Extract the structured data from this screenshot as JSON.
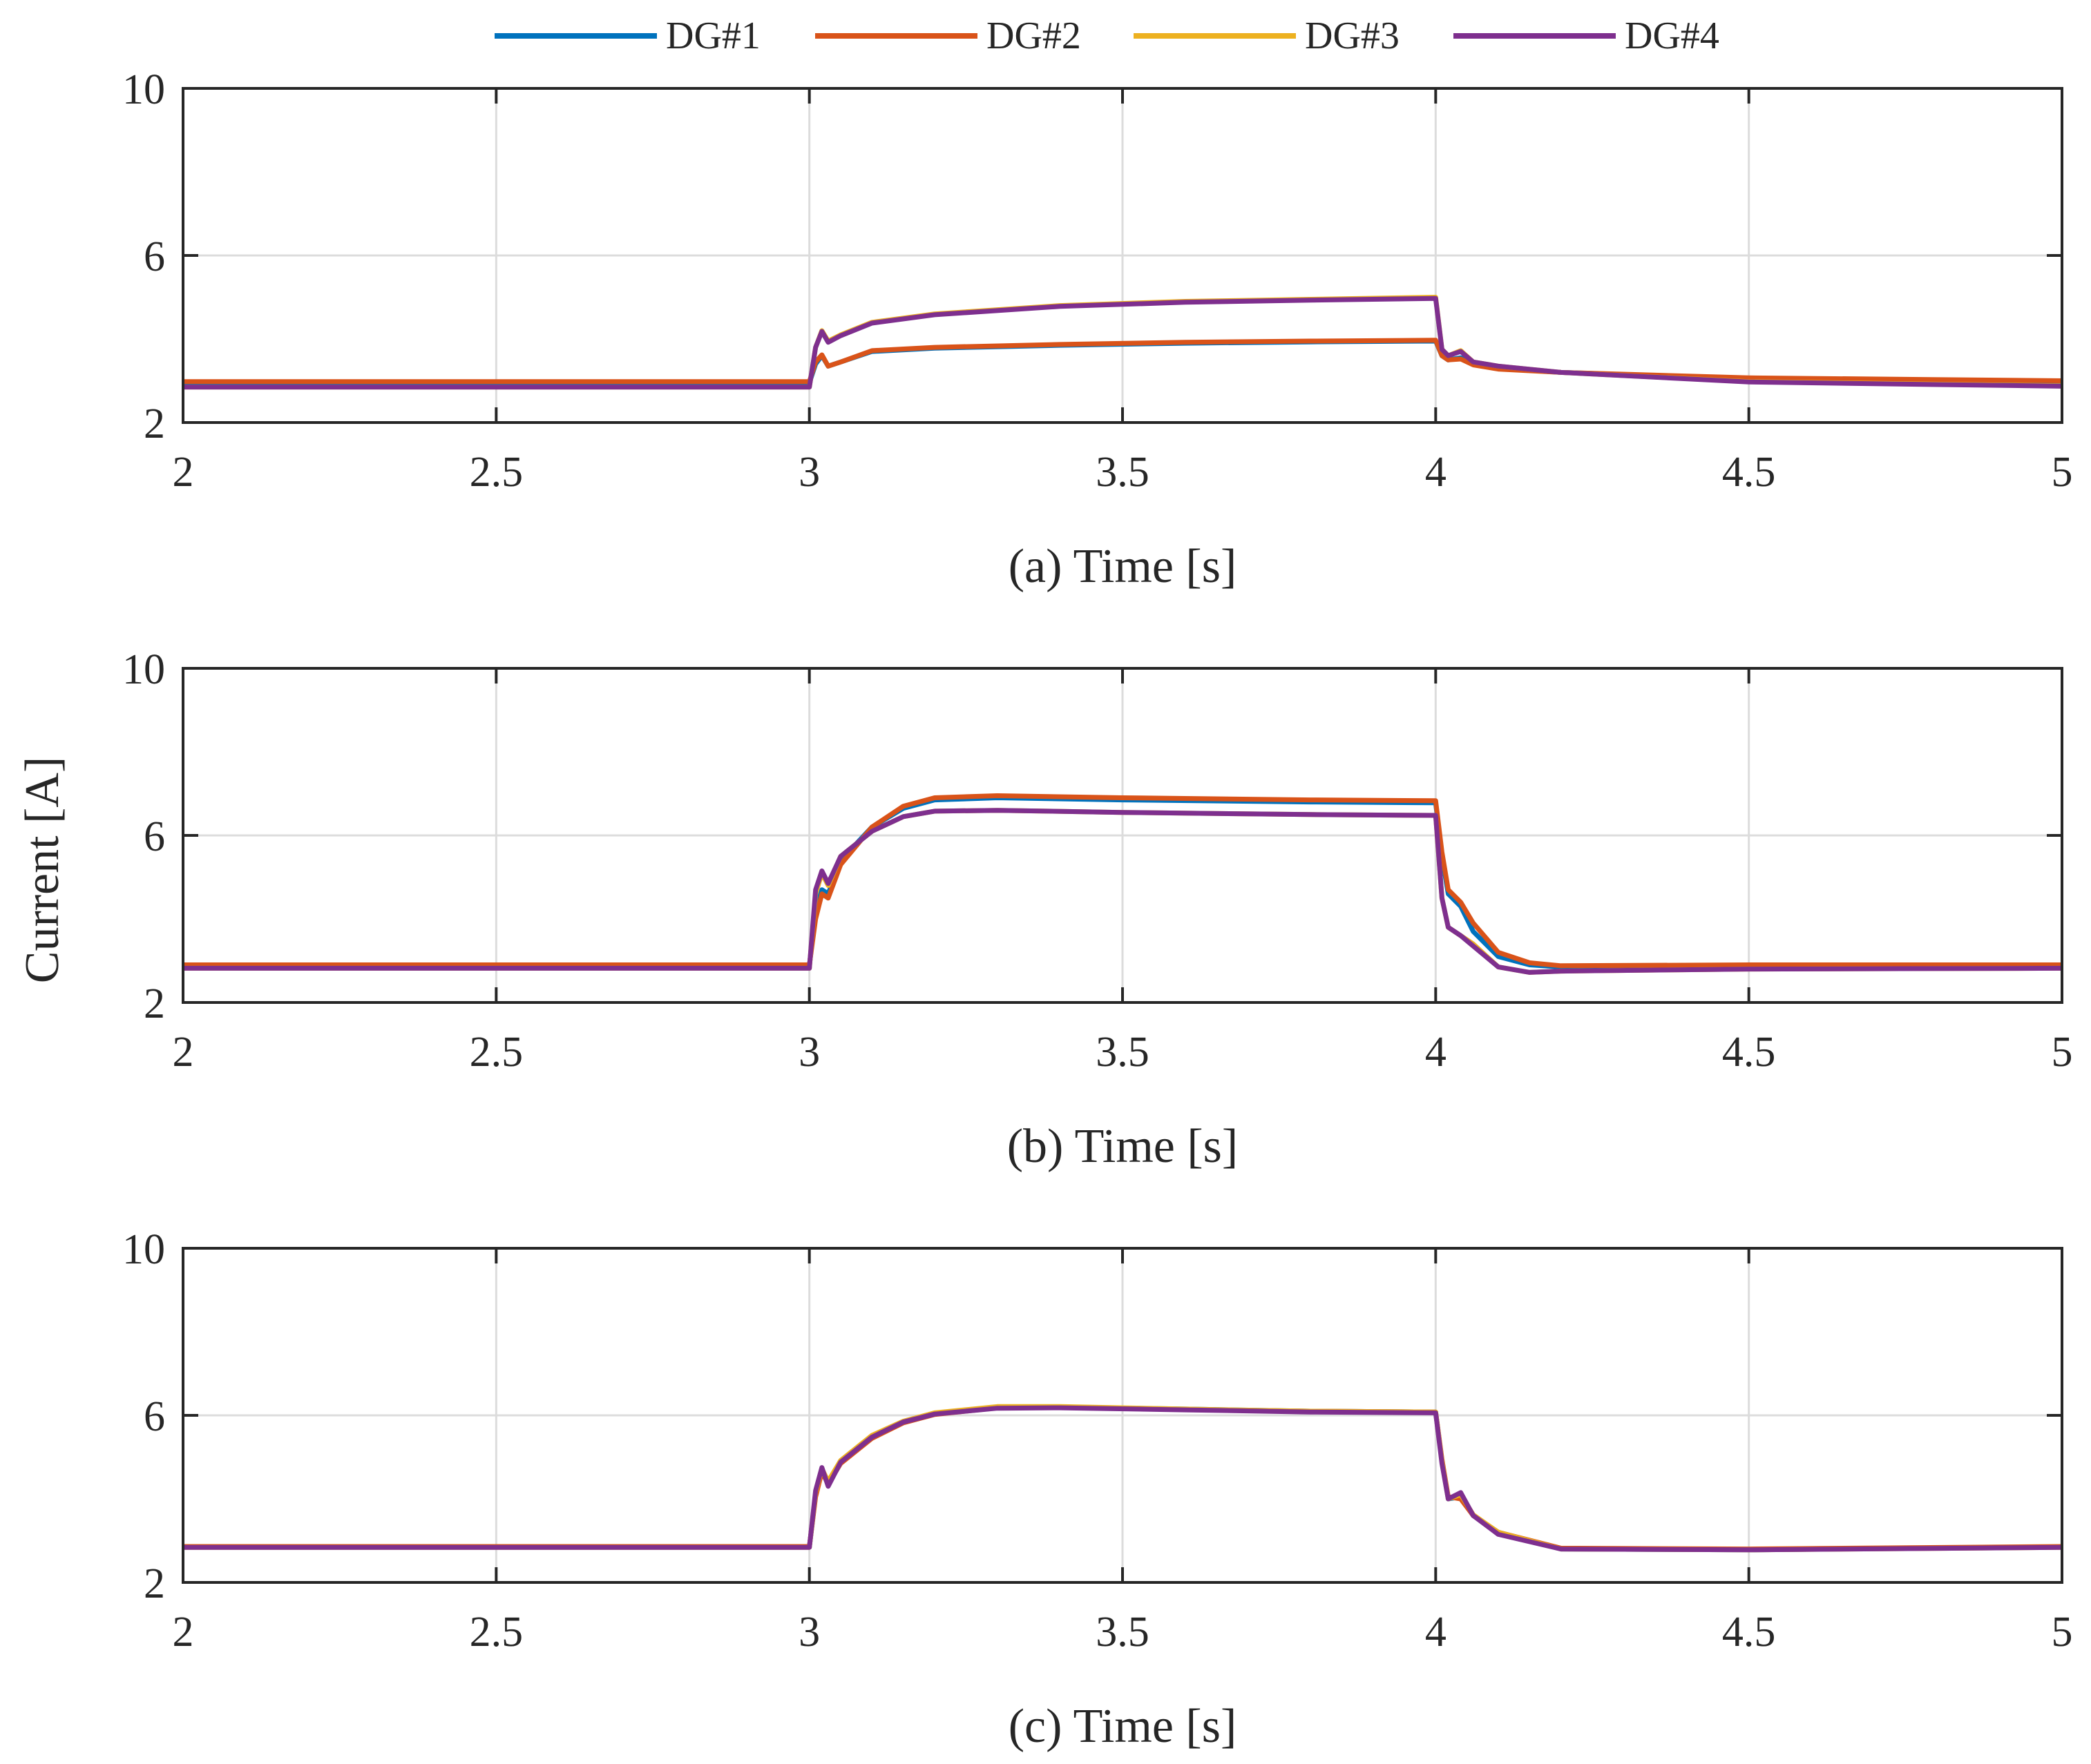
{
  "ylabel": "Current [A]",
  "legend": {
    "placement": "top-center",
    "entries": [
      {
        "name": "DG#1",
        "color": "#0072BD"
      },
      {
        "name": "DG#2",
        "color": "#D95319"
      },
      {
        "name": "DG#3",
        "color": "#EDB120"
      },
      {
        "name": "DG#4",
        "color": "#7E2F8E"
      }
    ]
  },
  "chart_data": [
    {
      "type": "line",
      "panel": "(a)",
      "xlabel": "(a) Time [s]",
      "ylabel": "Current [A]",
      "xlim": [
        2,
        5
      ],
      "ylim": [
        2,
        10
      ],
      "xticks": [
        2,
        2.5,
        3,
        3.5,
        4,
        4.5,
        5
      ],
      "xtick_labels": [
        "2",
        "2.5",
        "3",
        "3.5",
        "4",
        "4.5",
        "5"
      ],
      "yticks": [
        2,
        6,
        10
      ],
      "ytick_labels": [
        "2",
        "6",
        "10"
      ],
      "grid": true,
      "series": [
        {
          "name": "DG#1",
          "x": [
            2,
            3.0,
            3.01,
            3.02,
            3.03,
            3.05,
            3.1,
            3.2,
            3.4,
            3.6,
            3.8,
            4.0,
            4.01,
            4.02,
            4.04,
            4.06,
            4.1,
            4.2,
            4.5,
            5
          ],
          "y": [
            2.95,
            2.95,
            3.4,
            3.6,
            3.35,
            3.45,
            3.7,
            3.78,
            3.85,
            3.9,
            3.93,
            3.95,
            3.6,
            3.5,
            3.55,
            3.4,
            3.3,
            3.2,
            3.05,
            2.98
          ]
        },
        {
          "name": "DG#2",
          "x": [
            2,
            3.0,
            3.01,
            3.02,
            3.03,
            3.05,
            3.1,
            3.2,
            3.4,
            3.6,
            3.8,
            4.0,
            4.01,
            4.02,
            4.04,
            4.06,
            4.1,
            4.2,
            4.5,
            5
          ],
          "y": [
            2.98,
            2.98,
            3.45,
            3.62,
            3.35,
            3.45,
            3.72,
            3.8,
            3.87,
            3.92,
            3.95,
            3.97,
            3.6,
            3.5,
            3.52,
            3.38,
            3.28,
            3.2,
            3.07,
            3.0
          ]
        },
        {
          "name": "DG#3",
          "x": [
            2,
            3.0,
            3.01,
            3.02,
            3.03,
            3.05,
            3.1,
            3.2,
            3.4,
            3.6,
            3.8,
            4.0,
            4.01,
            4.02,
            4.04,
            4.06,
            4.1,
            4.2,
            4.5,
            5
          ],
          "y": [
            2.85,
            2.85,
            3.8,
            4.2,
            3.95,
            4.1,
            4.4,
            4.6,
            4.8,
            4.9,
            4.95,
            5.0,
            3.75,
            3.6,
            3.72,
            3.45,
            3.35,
            3.2,
            2.98,
            2.88
          ]
        },
        {
          "name": "DG#4",
          "x": [
            2,
            3.0,
            3.01,
            3.02,
            3.03,
            3.05,
            3.1,
            3.2,
            3.4,
            3.6,
            3.8,
            4.0,
            4.01,
            4.02,
            4.04,
            4.06,
            4.1,
            4.2,
            4.5,
            5
          ],
          "y": [
            2.85,
            2.85,
            3.8,
            4.18,
            3.92,
            4.08,
            4.38,
            4.58,
            4.78,
            4.88,
            4.93,
            4.97,
            3.75,
            3.6,
            3.7,
            3.45,
            3.35,
            3.2,
            2.97,
            2.87
          ]
        }
      ]
    },
    {
      "type": "line",
      "panel": "(b)",
      "xlabel": "(b) Time [s]",
      "ylabel": "Current [A]",
      "xlim": [
        2,
        5
      ],
      "ylim": [
        2,
        10
      ],
      "xticks": [
        2,
        2.5,
        3,
        3.5,
        4,
        4.5,
        5
      ],
      "xtick_labels": [
        "2",
        "2.5",
        "3",
        "3.5",
        "4",
        "4.5",
        "5"
      ],
      "yticks": [
        2,
        6,
        10
      ],
      "ytick_labels": [
        "2",
        "6",
        "10"
      ],
      "grid": true,
      "series": [
        {
          "name": "DG#1",
          "x": [
            2,
            3.0,
            3.01,
            3.02,
            3.03,
            3.05,
            3.1,
            3.15,
            3.2,
            3.3,
            3.5,
            3.8,
            4.0,
            4.01,
            4.02,
            4.04,
            4.06,
            4.1,
            4.15,
            4.2,
            4.5,
            5
          ],
          "y": [
            2.88,
            2.88,
            4.2,
            4.7,
            4.6,
            5.4,
            6.2,
            6.65,
            6.85,
            6.9,
            6.85,
            6.8,
            6.78,
            5.5,
            4.6,
            4.3,
            3.7,
            3.1,
            2.9,
            2.85,
            2.87,
            2.88
          ]
        },
        {
          "name": "DG#2",
          "x": [
            2,
            3.0,
            3.01,
            3.02,
            3.03,
            3.05,
            3.1,
            3.15,
            3.2,
            3.3,
            3.5,
            3.8,
            4.0,
            4.01,
            4.02,
            4.04,
            4.06,
            4.1,
            4.15,
            4.2,
            4.5,
            5
          ],
          "y": [
            2.9,
            2.9,
            4.0,
            4.6,
            4.5,
            5.3,
            6.2,
            6.7,
            6.9,
            6.95,
            6.9,
            6.85,
            6.83,
            5.6,
            4.7,
            4.4,
            3.9,
            3.2,
            2.95,
            2.88,
            2.9,
            2.9
          ]
        },
        {
          "name": "DG#3",
          "x": [
            2,
            3.0,
            3.01,
            3.02,
            3.03,
            3.05,
            3.1,
            3.15,
            3.2,
            3.3,
            3.5,
            3.8,
            4.0,
            4.01,
            4.02,
            4.04,
            4.06,
            4.1,
            4.15,
            4.2,
            4.5,
            5
          ],
          "y": [
            2.82,
            2.82,
            4.6,
            5.1,
            4.8,
            5.5,
            6.1,
            6.45,
            6.58,
            6.6,
            6.55,
            6.5,
            6.48,
            4.5,
            3.8,
            3.6,
            3.4,
            2.85,
            2.72,
            2.75,
            2.8,
            2.82
          ]
        },
        {
          "name": "DG#4",
          "x": [
            2,
            3.0,
            3.01,
            3.02,
            3.03,
            3.05,
            3.1,
            3.15,
            3.2,
            3.3,
            3.5,
            3.8,
            4.0,
            4.01,
            4.02,
            4.04,
            4.06,
            4.1,
            4.15,
            4.2,
            4.5,
            5
          ],
          "y": [
            2.82,
            2.82,
            4.7,
            5.15,
            4.85,
            5.5,
            6.1,
            6.45,
            6.58,
            6.6,
            6.55,
            6.5,
            6.48,
            4.5,
            3.8,
            3.6,
            3.35,
            2.85,
            2.72,
            2.75,
            2.8,
            2.82
          ]
        }
      ]
    },
    {
      "type": "line",
      "panel": "(c)",
      "xlabel": "(c) Time [s]",
      "ylabel": "Current [A]",
      "xlim": [
        2,
        5
      ],
      "ylim": [
        2,
        10
      ],
      "xticks": [
        2,
        2.5,
        3,
        3.5,
        4,
        4.5,
        5
      ],
      "xtick_labels": [
        "2",
        "2.5",
        "3",
        "3.5",
        "4",
        "4.5",
        "5"
      ],
      "yticks": [
        2,
        6,
        10
      ],
      "ytick_labels": [
        "2",
        "6",
        "10"
      ],
      "grid": true,
      "series": [
        {
          "name": "DG#1",
          "x": [
            2,
            3.0,
            3.01,
            3.02,
            3.03,
            3.05,
            3.1,
            3.15,
            3.2,
            3.3,
            3.4,
            3.6,
            3.8,
            4.0,
            4.01,
            4.02,
            4.04,
            4.06,
            4.1,
            4.2,
            4.5,
            5
          ],
          "y": [
            2.85,
            2.85,
            4.1,
            4.7,
            4.4,
            4.9,
            5.5,
            5.85,
            6.05,
            6.2,
            6.2,
            6.15,
            6.1,
            6.08,
            4.9,
            4.0,
            4.05,
            3.6,
            3.2,
            2.8,
            2.78,
            2.85
          ]
        },
        {
          "name": "DG#2",
          "x": [
            2,
            3.0,
            3.01,
            3.02,
            3.03,
            3.05,
            3.1,
            3.15,
            3.2,
            3.3,
            3.4,
            3.6,
            3.8,
            4.0,
            4.01,
            4.02,
            4.04,
            4.06,
            4.1,
            4.2,
            4.5,
            5
          ],
          "y": [
            2.86,
            2.86,
            4.05,
            4.65,
            4.35,
            4.85,
            5.45,
            5.82,
            6.02,
            6.18,
            6.19,
            6.14,
            6.1,
            6.08,
            4.95,
            4.05,
            4.0,
            3.6,
            3.2,
            2.82,
            2.8,
            2.86
          ]
        },
        {
          "name": "DG#3",
          "x": [
            2,
            3.0,
            3.01,
            3.02,
            3.03,
            3.05,
            3.1,
            3.15,
            3.2,
            3.3,
            3.4,
            3.6,
            3.8,
            4.0,
            4.01,
            4.02,
            4.04,
            4.06,
            4.1,
            4.2,
            4.5,
            5
          ],
          "y": [
            2.84,
            2.84,
            4.15,
            4.72,
            4.42,
            4.92,
            5.52,
            5.86,
            6.06,
            6.21,
            6.21,
            6.15,
            6.1,
            6.08,
            4.9,
            4.0,
            4.1,
            3.62,
            3.2,
            2.8,
            2.78,
            2.84
          ]
        },
        {
          "name": "DG#4",
          "x": [
            2,
            3.0,
            3.01,
            3.02,
            3.03,
            3.05,
            3.1,
            3.15,
            3.2,
            3.3,
            3.4,
            3.6,
            3.8,
            4.0,
            4.01,
            4.02,
            4.04,
            4.06,
            4.1,
            4.2,
            4.5,
            5
          ],
          "y": [
            2.84,
            2.84,
            4.2,
            4.75,
            4.3,
            4.88,
            5.48,
            5.84,
            6.03,
            6.17,
            6.18,
            6.13,
            6.08,
            6.06,
            4.85,
            4.0,
            4.15,
            3.6,
            3.15,
            2.8,
            2.78,
            2.84
          ]
        }
      ]
    }
  ]
}
